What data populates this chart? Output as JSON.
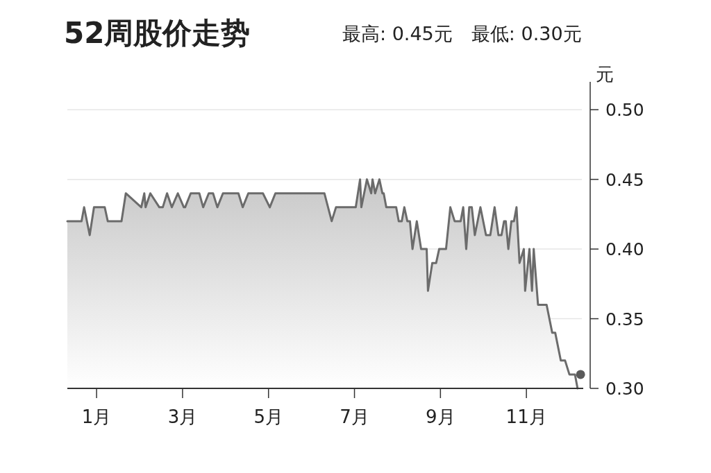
{
  "chart_data": {
    "type": "area",
    "title": "52周股价走势",
    "subtitle": "最高: 0.45元　最低: 0.30元",
    "ylabel": "元",
    "xlim": [
      0.32,
      12.29
    ],
    "ylim": [
      0.3,
      0.52
    ],
    "xticks": [
      {
        "value": 1,
        "label": "1月"
      },
      {
        "value": 3,
        "label": "3月"
      },
      {
        "value": 5,
        "label": "5月"
      },
      {
        "value": 7,
        "label": "7月"
      },
      {
        "value": 9,
        "label": "9月"
      },
      {
        "value": 11,
        "label": "11月"
      }
    ],
    "yticks": [
      {
        "value": 0.3,
        "label": "0.30"
      },
      {
        "value": 0.35,
        "label": "0.35"
      },
      {
        "value": 0.4,
        "label": "0.40"
      },
      {
        "value": 0.45,
        "label": "0.45"
      },
      {
        "value": 0.5,
        "label": "0.50"
      }
    ],
    "grid": "y",
    "series": [
      {
        "color": "#6b6b6b",
        "x": [
          0.32,
          0.65,
          0.71,
          0.84,
          0.94,
          1.19,
          1.26,
          1.58,
          1.68,
          2.04,
          2.11,
          2.14,
          2.25,
          2.46,
          2.54,
          2.64,
          2.75,
          2.89,
          3.03,
          3.06,
          3.19,
          3.39,
          3.48,
          3.61,
          3.71,
          3.81,
          3.94,
          4.3,
          4.4,
          4.53,
          4.87,
          5.03,
          5.16,
          6.3,
          6.47,
          6.57,
          7.03,
          7.13,
          7.16,
          7.29,
          7.39,
          7.42,
          7.48,
          7.58,
          7.65,
          7.68,
          7.74,
          7.97,
          8.03,
          8.1,
          8.16,
          8.23,
          8.29,
          8.35,
          8.45,
          8.55,
          8.68,
          8.71,
          8.81,
          8.9,
          8.97,
          9.13,
          9.23,
          9.33,
          9.47,
          9.53,
          9.6,
          9.67,
          9.73,
          9.8,
          9.93,
          10.06,
          10.16,
          10.26,
          10.35,
          10.42,
          10.48,
          10.52,
          10.58,
          10.65,
          10.71,
          10.77,
          10.84,
          10.94,
          10.97,
          11.07,
          11.13,
          11.17,
          11.27,
          11.47,
          11.6,
          11.67,
          11.8,
          11.9,
          12.0,
          12.13,
          12.19
        ],
        "values": [
          0.42,
          0.42,
          0.43,
          0.41,
          0.43,
          0.43,
          0.42,
          0.42,
          0.44,
          0.43,
          0.44,
          0.43,
          0.44,
          0.43,
          0.43,
          0.44,
          0.43,
          0.44,
          0.43,
          0.43,
          0.44,
          0.44,
          0.43,
          0.44,
          0.44,
          0.43,
          0.44,
          0.44,
          0.43,
          0.44,
          0.44,
          0.43,
          0.44,
          0.44,
          0.42,
          0.43,
          0.43,
          0.45,
          0.43,
          0.45,
          0.44,
          0.45,
          0.44,
          0.45,
          0.44,
          0.44,
          0.43,
          0.43,
          0.42,
          0.42,
          0.43,
          0.42,
          0.42,
          0.4,
          0.42,
          0.4,
          0.4,
          0.37,
          0.39,
          0.39,
          0.4,
          0.4,
          0.43,
          0.42,
          0.42,
          0.43,
          0.4,
          0.43,
          0.43,
          0.41,
          0.43,
          0.41,
          0.41,
          0.43,
          0.41,
          0.41,
          0.42,
          0.42,
          0.4,
          0.42,
          0.42,
          0.43,
          0.39,
          0.4,
          0.37,
          0.4,
          0.37,
          0.4,
          0.36,
          0.36,
          0.34,
          0.34,
          0.32,
          0.32,
          0.31,
          0.31,
          0.3
        ]
      },
      {
        "type": "scatter",
        "color": "#5a5a5a",
        "marker": "circle",
        "x": [
          12.26
        ],
        "values": [
          0.31
        ]
      }
    ]
  }
}
